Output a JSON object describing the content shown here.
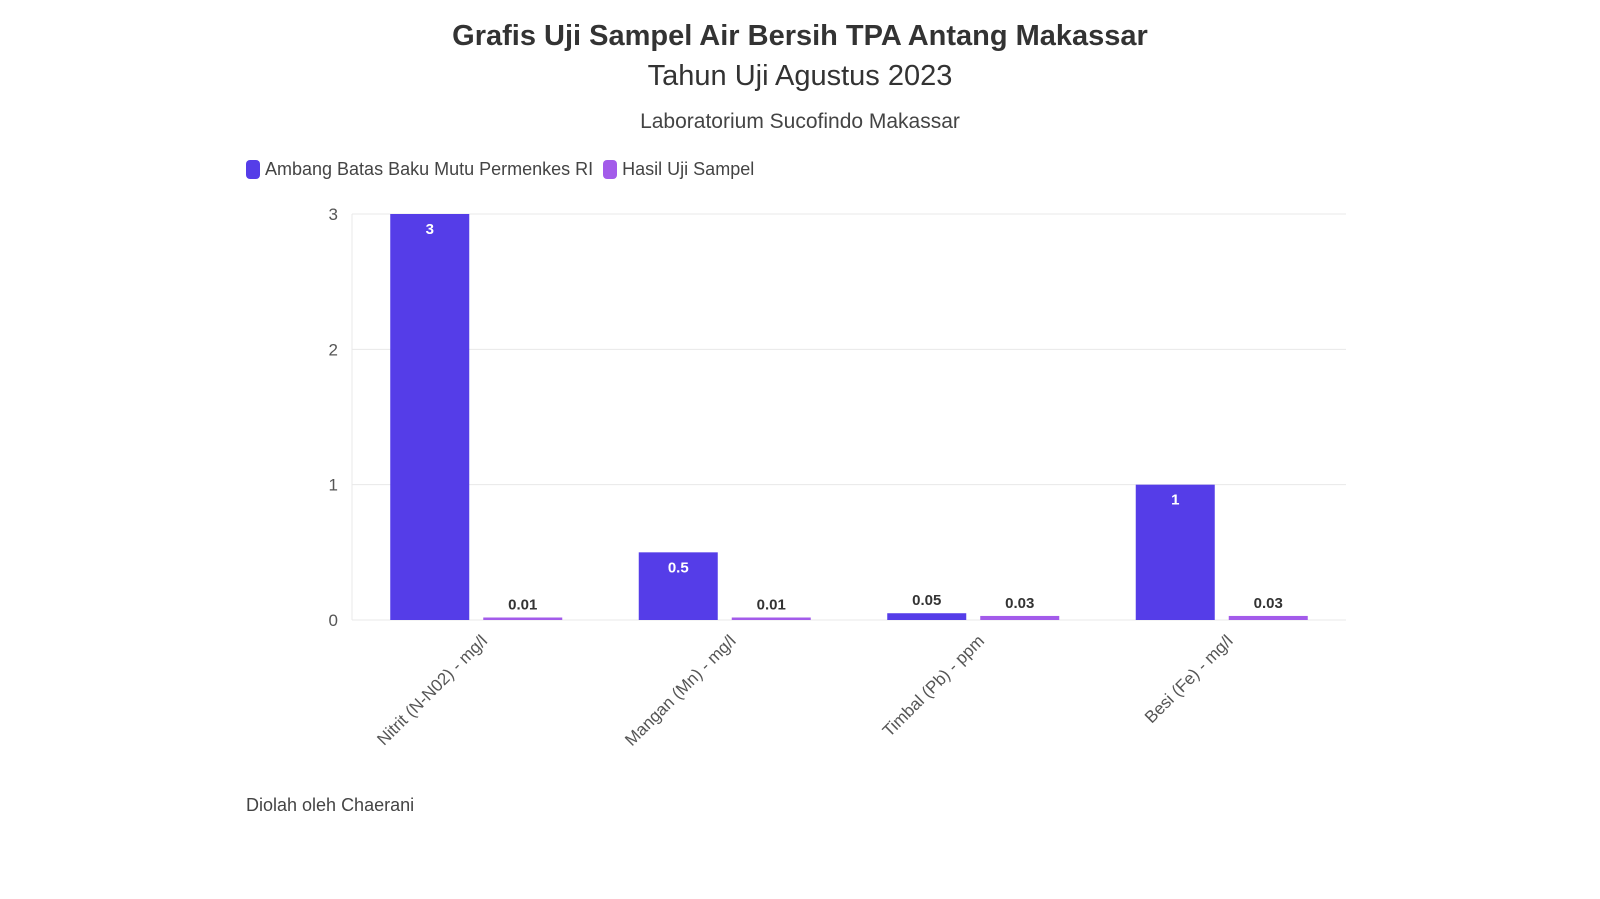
{
  "title": "Grafis Uji Sampel Air Bersih TPA Antang Makassar",
  "subtitle": "Tahun Uji Agustus 2023",
  "subtitle2": "Laboratorium Sucofindo Makassar",
  "footnote": "Diolah oleh Chaerani",
  "colors": {
    "series1": "#553de8",
    "series2": "#a35bea",
    "grid": "#e8e8e8",
    "axis_text": "#555555"
  },
  "chart_data": {
    "type": "bar",
    "categories": [
      "Nitrit (N-N02) - mg/l",
      "Mangan (Mn) - mg/l",
      "Timbal (Pb) - ppm",
      "Besi (Fe) - mg/l"
    ],
    "series": [
      {
        "name": "Ambang Batas Baku Mutu Permenkes RI",
        "values": [
          3,
          0.5,
          0.05,
          1
        ],
        "labels": [
          "3",
          "0.5",
          "0.05",
          "1"
        ]
      },
      {
        "name": "Hasil Uji Sampel",
        "values": [
          0.01,
          0.01,
          0.03,
          0.03
        ],
        "labels": [
          "0.01",
          "0.01",
          "0.03",
          "0.03"
        ]
      }
    ],
    "yticks": [
      "0",
      "1",
      "2",
      "3"
    ],
    "ylim": [
      0,
      3
    ],
    "grid": true,
    "legend_position": "top-left"
  }
}
